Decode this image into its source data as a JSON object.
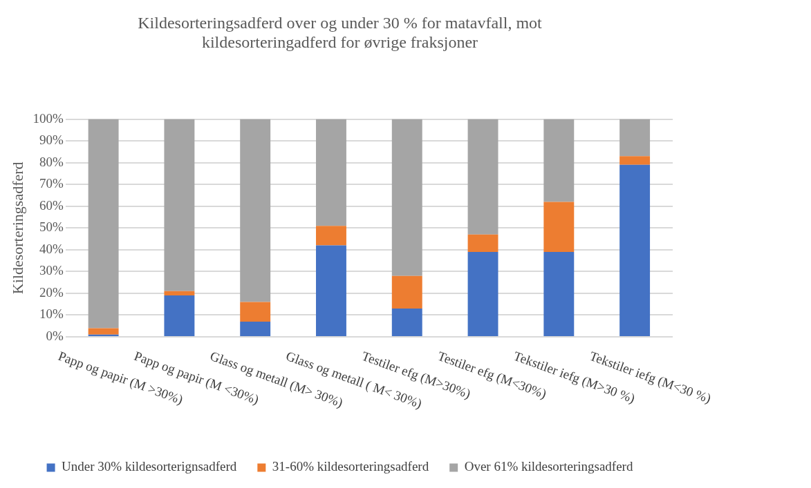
{
  "chart_data": {
    "type": "bar",
    "stacked": true,
    "title": "Kildesorteringsadferd over og under 30 % for matavfall, mot kildesorteringadferd for øvrige fraksjoner",
    "ylabel": "Kildesorteringsadferd",
    "categories": [
      "Papp og papir (M >30%)",
      "Papp og papir (M <30%)",
      "Glass og metall (M> 30%)",
      "Glass og metall ( M< 30%)",
      "Testiler efg (M>30%)",
      "Testiler efg (M<30%)",
      "Tekstiler iefg (M>30 %)",
      "Tekstiler iefg (M<30 %)"
    ],
    "series": [
      {
        "name": "Under 30% kildesorterignsadferd",
        "color": "#4472c4",
        "values": [
          1,
          19,
          7,
          42,
          13,
          39,
          39,
          79
        ]
      },
      {
        "name": "31-60% kildesorteringsadferd",
        "color": "#ed7d31",
        "values": [
          3,
          2,
          9,
          9,
          15,
          8,
          23,
          4
        ]
      },
      {
        "name": "Over 61% kildesorteringsadferd",
        "color": "#a5a5a5",
        "values": [
          96,
          79,
          84,
          49,
          72,
          53,
          38,
          17
        ]
      }
    ],
    "ylim": [
      0,
      100
    ],
    "yticks": [
      {
        "value": 0,
        "label": "0%"
      },
      {
        "value": 10,
        "label": "10%"
      },
      {
        "value": 20,
        "label": "20%"
      },
      {
        "value": 30,
        "label": "30%"
      },
      {
        "value": 40,
        "label": "40%"
      },
      {
        "value": 50,
        "label": "50%"
      },
      {
        "value": 60,
        "label": "60%"
      },
      {
        "value": 70,
        "label": "70%"
      },
      {
        "value": 80,
        "label": "80%"
      },
      {
        "value": 90,
        "label": "90%"
      },
      {
        "value": 100,
        "label": "100%"
      }
    ],
    "grid": "y",
    "legend": "bottom"
  }
}
